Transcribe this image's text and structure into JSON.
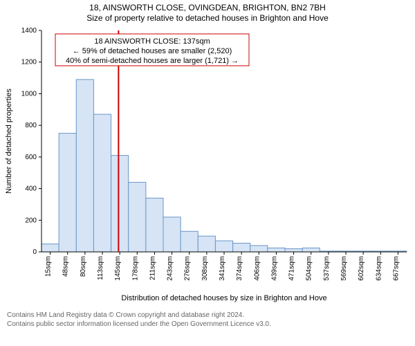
{
  "title_line1": "18, AINSWORTH CLOSE, OVINGDEAN, BRIGHTON, BN2 7BH",
  "title_line2": "Size of property relative to detached houses in Brighton and Hove",
  "title_fontsize": 12,
  "title_color": "#000000",
  "footer_line1": "Contains HM Land Registry data © Crown copyright and database right 2024.",
  "footer_line2": "Contains public sector information licensed under the Open Government Licence v3.0.",
  "footer_color": "#666666",
  "footer_fontsize": 10,
  "chart": {
    "type": "histogram",
    "background_color": "#ffffff",
    "bar_fill": "#d6e4f5",
    "bar_stroke": "#6a96c8",
    "axis_color": "#000000",
    "reference_line_color": "#cc0000",
    "reference_line_x_value": 137,
    "axis_tick_fontsize": 10,
    "axis_label_fontsize": 11,
    "x_axis_label": "Distribution of detached houses by size in Brighton and Hove",
    "y_axis_label": "Number of detached properties",
    "y_ticks": [
      0,
      200,
      400,
      600,
      800,
      1000,
      1200,
      1400
    ],
    "y_max": 1400,
    "x_tick_labels": [
      "15sqm",
      "48sqm",
      "80sqm",
      "113sqm",
      "145sqm",
      "178sqm",
      "211sqm",
      "243sqm",
      "276sqm",
      "308sqm",
      "341sqm",
      "374sqm",
      "406sqm",
      "439sqm",
      "471sqm",
      "504sqm",
      "537sqm",
      "569sqm",
      "602sqm",
      "634sqm",
      "667sqm"
    ],
    "bar_values": [
      50,
      750,
      1090,
      870,
      610,
      440,
      340,
      220,
      130,
      100,
      70,
      55,
      40,
      25,
      20,
      25,
      5,
      5,
      5,
      5,
      5
    ],
    "annotation": {
      "border_color": "#cc0000",
      "background_color": "#ffffff",
      "text_color": "#000000",
      "line1": "18 AINSWORTH CLOSE: 137sqm",
      "line2": "← 59% of detached houses are smaller (2,520)",
      "line3": "40% of semi-detached houses are larger (1,721) →"
    }
  }
}
